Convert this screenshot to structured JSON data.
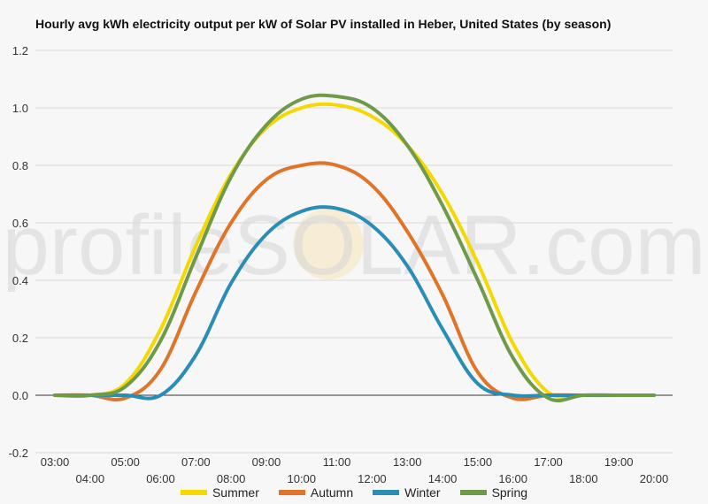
{
  "chart_data": {
    "type": "line",
    "title": "Hourly avg kWh electricity output per kW of Solar PV installed in Heber, United States (by season)",
    "xlabel": "",
    "ylabel": "",
    "ylim": [
      -0.2,
      1.2
    ],
    "yticks": [
      "1.2",
      "1.0",
      "0.8",
      "0.6",
      "0.4",
      "0.2",
      "0.0",
      "-0.2"
    ],
    "x": [
      "03:00",
      "04:00",
      "05:00",
      "06:00",
      "07:00",
      "08:00",
      "09:00",
      "10:00",
      "11:00",
      "12:00",
      "13:00",
      "14:00",
      "15:00",
      "16:00",
      "17:00",
      "18:00",
      "19:00",
      "20:00"
    ],
    "grid": true,
    "legend_position": "bottom",
    "watermark": "profileSOLAR.com",
    "series": [
      {
        "name": "Summer",
        "color": "#f5d800",
        "values": [
          0.0,
          0.0,
          0.04,
          0.23,
          0.52,
          0.77,
          0.93,
          1.0,
          1.01,
          0.97,
          0.87,
          0.7,
          0.46,
          0.18,
          0.01,
          0.0,
          0.0,
          0.0
        ]
      },
      {
        "name": "Autumn",
        "color": "#e07428",
        "values": [
          0.0,
          0.0,
          -0.01,
          0.09,
          0.36,
          0.6,
          0.75,
          0.8,
          0.8,
          0.73,
          0.57,
          0.35,
          0.08,
          -0.01,
          0.0,
          0.0,
          0.0,
          0.0
        ]
      },
      {
        "name": "Winter",
        "color": "#2a8db6",
        "values": [
          0.0,
          0.0,
          0.0,
          0.0,
          0.14,
          0.39,
          0.56,
          0.64,
          0.65,
          0.59,
          0.45,
          0.23,
          0.04,
          0.0,
          0.0,
          0.0,
          0.0,
          0.0
        ]
      },
      {
        "name": "Spring",
        "color": "#6e9a4a",
        "values": [
          0.0,
          0.0,
          0.03,
          0.19,
          0.48,
          0.76,
          0.94,
          1.03,
          1.04,
          1.0,
          0.87,
          0.66,
          0.4,
          0.13,
          -0.01,
          0.0,
          0.0,
          0.0
        ]
      }
    ]
  },
  "legend": {
    "items": [
      {
        "label": "Summer",
        "color": "#f5d800"
      },
      {
        "label": "Autumn",
        "color": "#e07428"
      },
      {
        "label": "Winter",
        "color": "#2a8db6"
      },
      {
        "label": "Spring",
        "color": "#6e9a4a"
      }
    ]
  }
}
